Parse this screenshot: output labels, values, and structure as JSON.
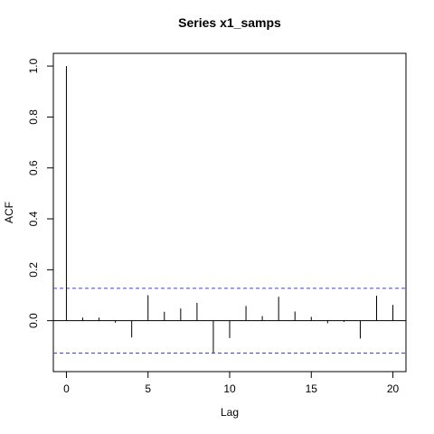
{
  "chart_data": {
    "type": "bar",
    "title": "Series  x1_samps",
    "xlabel": "Lag",
    "ylabel": "ACF",
    "xlim": [
      -0.8,
      20.8
    ],
    "ylim": [
      -0.2,
      1.05
    ],
    "x_ticks": [
      0,
      5,
      10,
      15,
      20
    ],
    "y_ticks": [
      0.0,
      0.2,
      0.4,
      0.6,
      0.8,
      1.0
    ],
    "y_tick_labels": [
      "0.0",
      "0.2",
      "0.4",
      "0.6",
      "0.8",
      "1.0"
    ],
    "lags": [
      0,
      1,
      2,
      3,
      4,
      5,
      6,
      7,
      8,
      9,
      10,
      11,
      12,
      13,
      14,
      15,
      16,
      17,
      18,
      19,
      20
    ],
    "acf": [
      1.0,
      0.012,
      0.012,
      -0.008,
      -0.066,
      0.1,
      0.035,
      0.048,
      0.07,
      -0.126,
      -0.068,
      0.058,
      0.018,
      0.094,
      0.036,
      0.015,
      -0.01,
      -0.005,
      -0.07,
      0.098,
      0.062
    ],
    "confidence_bounds": [
      0.127,
      -0.127
    ],
    "confidence_color": "#4040e0",
    "grid": false
  }
}
